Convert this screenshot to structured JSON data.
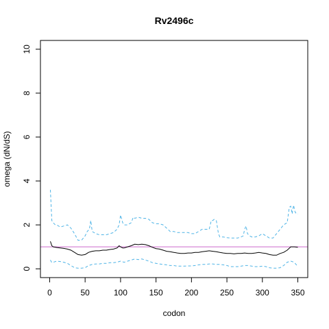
{
  "chart_data": {
    "type": "line",
    "title": "Rv2496c",
    "xlabel": "codon",
    "ylabel": "omega (dN/dS)",
    "xlim": [
      -13,
      364
    ],
    "ylim": [
      -0.4,
      10.4
    ],
    "xticks": [
      0,
      50,
      100,
      150,
      200,
      250,
      300,
      350
    ],
    "yticks": [
      0,
      2,
      4,
      6,
      8,
      10
    ],
    "hline": {
      "y": 1,
      "color": "#cc66cc"
    },
    "grid": false,
    "legend": "none",
    "series": [
      {
        "role": "estimate",
        "color": "#000000",
        "dash": "solid",
        "x": [
          1,
          3,
          5,
          10,
          15,
          20,
          25,
          30,
          35,
          40,
          45,
          50,
          55,
          60,
          65,
          70,
          75,
          80,
          85,
          90,
          95,
          98,
          100,
          103,
          105,
          110,
          115,
          120,
          125,
          130,
          135,
          140,
          145,
          150,
          155,
          160,
          165,
          170,
          175,
          180,
          185,
          190,
          195,
          200,
          205,
          210,
          215,
          220,
          225,
          230,
          235,
          240,
          245,
          250,
          255,
          260,
          265,
          270,
          275,
          280,
          285,
          290,
          295,
          300,
          305,
          310,
          315,
          320,
          325,
          330,
          335,
          340,
          345,
          350
        ],
        "y": [
          1.25,
          1.05,
          1.0,
          0.97,
          0.95,
          0.93,
          0.9,
          0.85,
          0.75,
          0.65,
          0.62,
          0.65,
          0.75,
          0.8,
          0.82,
          0.82,
          0.85,
          0.85,
          0.88,
          0.9,
          0.95,
          1.05,
          1.0,
          0.95,
          0.95,
          1.0,
          1.05,
          1.12,
          1.1,
          1.12,
          1.1,
          1.05,
          0.98,
          0.92,
          0.9,
          0.85,
          0.8,
          0.78,
          0.75,
          0.72,
          0.7,
          0.7,
          0.72,
          0.72,
          0.75,
          0.75,
          0.78,
          0.8,
          0.82,
          0.8,
          0.78,
          0.75,
          0.72,
          0.7,
          0.7,
          0.68,
          0.7,
          0.7,
          0.72,
          0.7,
          0.7,
          0.72,
          0.75,
          0.72,
          0.7,
          0.65,
          0.62,
          0.62,
          0.7,
          0.75,
          0.85,
          1.0,
          1.0,
          0.98
        ]
      },
      {
        "role": "upper",
        "color": "#4db3e6",
        "dash": "dashed",
        "x": [
          1,
          3,
          5,
          8,
          10,
          15,
          20,
          25,
          30,
          35,
          40,
          45,
          50,
          53,
          56,
          58,
          60,
          65,
          70,
          75,
          80,
          85,
          90,
          95,
          98,
          100,
          103,
          105,
          110,
          115,
          118,
          120,
          125,
          130,
          135,
          140,
          145,
          150,
          155,
          160,
          165,
          170,
          175,
          180,
          185,
          190,
          195,
          200,
          205,
          210,
          215,
          220,
          225,
          228,
          230,
          232,
          235,
          238,
          240,
          245,
          250,
          255,
          260,
          265,
          270,
          273,
          275,
          277,
          279,
          282,
          285,
          290,
          295,
          300,
          305,
          310,
          315,
          320,
          325,
          330,
          335,
          338,
          340,
          342,
          344,
          346,
          348,
          350
        ],
        "y": [
          3.6,
          2.2,
          2.1,
          2.0,
          2.0,
          1.9,
          1.95,
          2.0,
          1.85,
          1.6,
          1.3,
          1.3,
          1.5,
          1.7,
          1.8,
          2.2,
          1.7,
          1.6,
          1.55,
          1.55,
          1.55,
          1.6,
          1.65,
          1.8,
          2.0,
          2.45,
          2.1,
          2.0,
          2.0,
          2.1,
          2.35,
          2.3,
          2.35,
          2.3,
          2.3,
          2.25,
          2.1,
          2.05,
          2.05,
          2.0,
          1.85,
          1.7,
          1.7,
          1.65,
          1.65,
          1.65,
          1.65,
          1.6,
          1.6,
          1.7,
          1.8,
          1.8,
          1.8,
          2.2,
          2.2,
          2.25,
          2.2,
          1.6,
          1.45,
          1.45,
          1.42,
          1.4,
          1.4,
          1.4,
          1.45,
          1.5,
          1.8,
          1.95,
          1.6,
          1.5,
          1.45,
          1.45,
          1.5,
          1.6,
          1.5,
          1.4,
          1.4,
          1.6,
          1.8,
          2.0,
          2.1,
          2.8,
          2.85,
          2.5,
          2.9,
          2.6,
          2.5,
          2.5
        ]
      },
      {
        "role": "lower",
        "color": "#4db3e6",
        "dash": "dashed",
        "x": [
          1,
          3,
          5,
          10,
          15,
          20,
          25,
          30,
          35,
          40,
          45,
          50,
          55,
          60,
          65,
          70,
          75,
          80,
          85,
          90,
          95,
          100,
          105,
          110,
          115,
          120,
          125,
          130,
          135,
          140,
          145,
          150,
          155,
          160,
          165,
          170,
          175,
          180,
          185,
          190,
          195,
          200,
          205,
          210,
          215,
          220,
          225,
          230,
          235,
          240,
          245,
          250,
          255,
          260,
          265,
          270,
          275,
          280,
          285,
          290,
          295,
          300,
          305,
          310,
          315,
          320,
          325,
          330,
          335,
          340,
          345,
          350
        ],
        "y": [
          0.4,
          0.28,
          0.3,
          0.35,
          0.33,
          0.3,
          0.25,
          0.15,
          0.05,
          0.03,
          0.03,
          0.05,
          0.15,
          0.2,
          0.22,
          0.22,
          0.25,
          0.25,
          0.28,
          0.28,
          0.3,
          0.35,
          0.3,
          0.35,
          0.4,
          0.45,
          0.42,
          0.45,
          0.4,
          0.35,
          0.28,
          0.25,
          0.22,
          0.2,
          0.18,
          0.15,
          0.15,
          0.12,
          0.12,
          0.12,
          0.13,
          0.13,
          0.15,
          0.18,
          0.2,
          0.2,
          0.22,
          0.22,
          0.2,
          0.2,
          0.18,
          0.15,
          0.1,
          0.1,
          0.1,
          0.12,
          0.15,
          0.15,
          0.12,
          0.1,
          0.1,
          0.12,
          0.1,
          0.05,
          0.03,
          0.03,
          0.05,
          0.15,
          0.3,
          0.35,
          0.3,
          0.1
        ]
      }
    ]
  }
}
